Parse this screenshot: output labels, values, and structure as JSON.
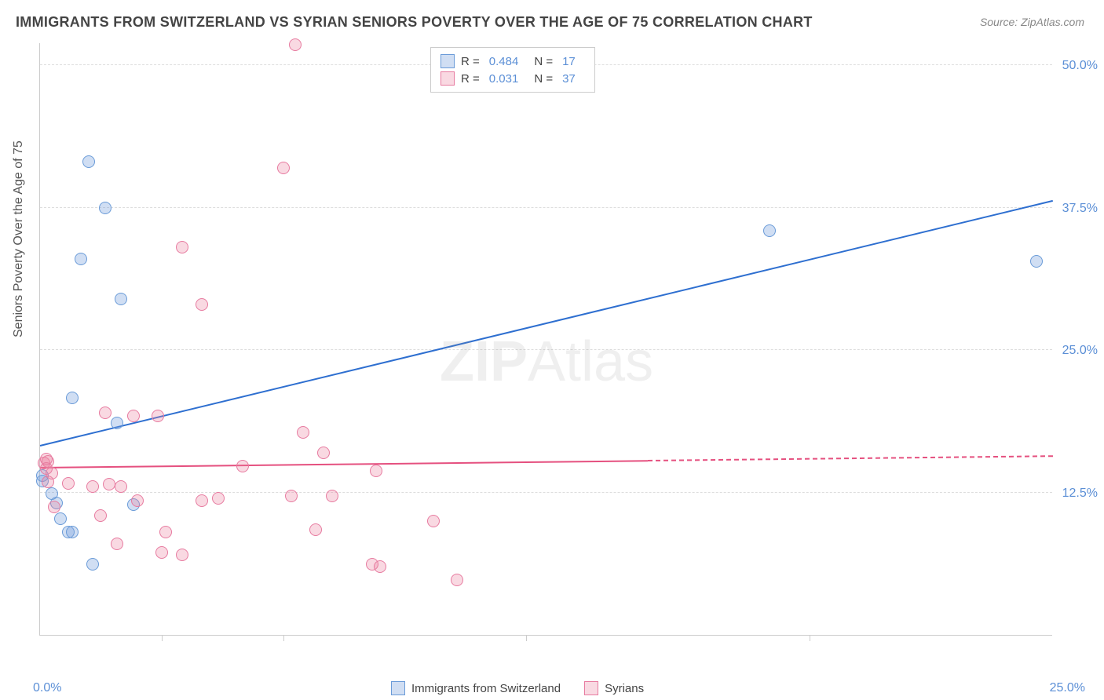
{
  "title": "IMMIGRANTS FROM SWITZERLAND VS SYRIAN SENIORS POVERTY OVER THE AGE OF 75 CORRELATION CHART",
  "source": "Source: ZipAtlas.com",
  "watermark_bold": "ZIP",
  "watermark_rest": "Atlas",
  "chart": {
    "type": "scatter",
    "y_axis_title": "Seniors Poverty Over the Age of 75",
    "xlim": [
      0,
      25
    ],
    "ylim": [
      0,
      52
    ],
    "x_ticks_major": [
      0,
      25
    ],
    "x_tick_labels": [
      "0.0%",
      "25.0%"
    ],
    "x_ticks_minor": [
      3,
      6,
      12,
      19
    ],
    "y_ticks": [
      12.5,
      25,
      37.5,
      50
    ],
    "y_tick_labels": [
      "12.5%",
      "25.0%",
      "37.5%",
      "50.0%"
    ],
    "grid_color": "#dddddd",
    "background_color": "#ffffff",
    "series": [
      {
        "name": "Immigrants from Switzerland",
        "color_fill": "rgba(120,160,220,0.35)",
        "color_stroke": "#6a9bd8",
        "trend_color": "#2e6fd0",
        "r": 0.484,
        "n": 17,
        "trend": {
          "x1": 0,
          "y1": 16.5,
          "x2": 25,
          "y2": 38.0,
          "solid_end_x": 25
        },
        "points": [
          {
            "x": 1.2,
            "y": 41.5
          },
          {
            "x": 1.6,
            "y": 37.5
          },
          {
            "x": 1.0,
            "y": 33.0
          },
          {
            "x": 2.0,
            "y": 29.5
          },
          {
            "x": 18.0,
            "y": 35.5
          },
          {
            "x": 24.6,
            "y": 32.8
          },
          {
            "x": 0.8,
            "y": 20.8
          },
          {
            "x": 1.9,
            "y": 18.6
          },
          {
            "x": 0.05,
            "y": 13.5
          },
          {
            "x": 0.05,
            "y": 14.0
          },
          {
            "x": 0.4,
            "y": 11.6
          },
          {
            "x": 0.5,
            "y": 10.2
          },
          {
            "x": 0.7,
            "y": 9.0
          },
          {
            "x": 0.8,
            "y": 9.0
          },
          {
            "x": 2.3,
            "y": 11.4
          },
          {
            "x": 1.3,
            "y": 6.2
          },
          {
            "x": 0.3,
            "y": 12.4
          }
        ]
      },
      {
        "name": "Syrians",
        "color_fill": "rgba(235,130,160,0.30)",
        "color_stroke": "#e77ba0",
        "trend_color": "#e5507f",
        "r": 0.031,
        "n": 37,
        "trend": {
          "x1": 0,
          "y1": 14.6,
          "x2": 25,
          "y2": 15.6,
          "solid_end_x": 15
        },
        "points": [
          {
            "x": 6.3,
            "y": 51.8
          },
          {
            "x": 6.0,
            "y": 41.0
          },
          {
            "x": 3.5,
            "y": 34.0
          },
          {
            "x": 4.0,
            "y": 29.0
          },
          {
            "x": 1.6,
            "y": 19.5
          },
          {
            "x": 2.3,
            "y": 19.2
          },
          {
            "x": 2.9,
            "y": 19.2
          },
          {
            "x": 6.5,
            "y": 17.8
          },
          {
            "x": 7.0,
            "y": 16.0
          },
          {
            "x": 8.3,
            "y": 14.4
          },
          {
            "x": 5.0,
            "y": 14.8
          },
          {
            "x": 0.1,
            "y": 15.1
          },
          {
            "x": 0.3,
            "y": 14.2
          },
          {
            "x": 0.2,
            "y": 13.4
          },
          {
            "x": 0.7,
            "y": 13.3
          },
          {
            "x": 1.3,
            "y": 13.0
          },
          {
            "x": 1.7,
            "y": 13.2
          },
          {
            "x": 2.0,
            "y": 13.0
          },
          {
            "x": 2.4,
            "y": 11.8
          },
          {
            "x": 4.0,
            "y": 11.8
          },
          {
            "x": 4.4,
            "y": 12.0
          },
          {
            "x": 1.5,
            "y": 10.5
          },
          {
            "x": 3.1,
            "y": 9.0
          },
          {
            "x": 1.9,
            "y": 8.0
          },
          {
            "x": 3.0,
            "y": 7.2
          },
          {
            "x": 3.5,
            "y": 7.0
          },
          {
            "x": 6.2,
            "y": 12.2
          },
          {
            "x": 6.8,
            "y": 9.2
          },
          {
            "x": 7.2,
            "y": 12.2
          },
          {
            "x": 8.2,
            "y": 6.2
          },
          {
            "x": 8.4,
            "y": 6.0
          },
          {
            "x": 9.7,
            "y": 10.0
          },
          {
            "x": 10.3,
            "y": 4.8
          },
          {
            "x": 0.2,
            "y": 15.2
          },
          {
            "x": 0.15,
            "y": 14.6
          },
          {
            "x": 0.15,
            "y": 15.4
          },
          {
            "x": 0.35,
            "y": 11.2
          }
        ]
      }
    ]
  },
  "legend_top": {
    "r_label": "R =",
    "n_label": "N ="
  },
  "legend_bottom": {
    "items": [
      "Immigrants from Switzerland",
      "Syrians"
    ]
  }
}
